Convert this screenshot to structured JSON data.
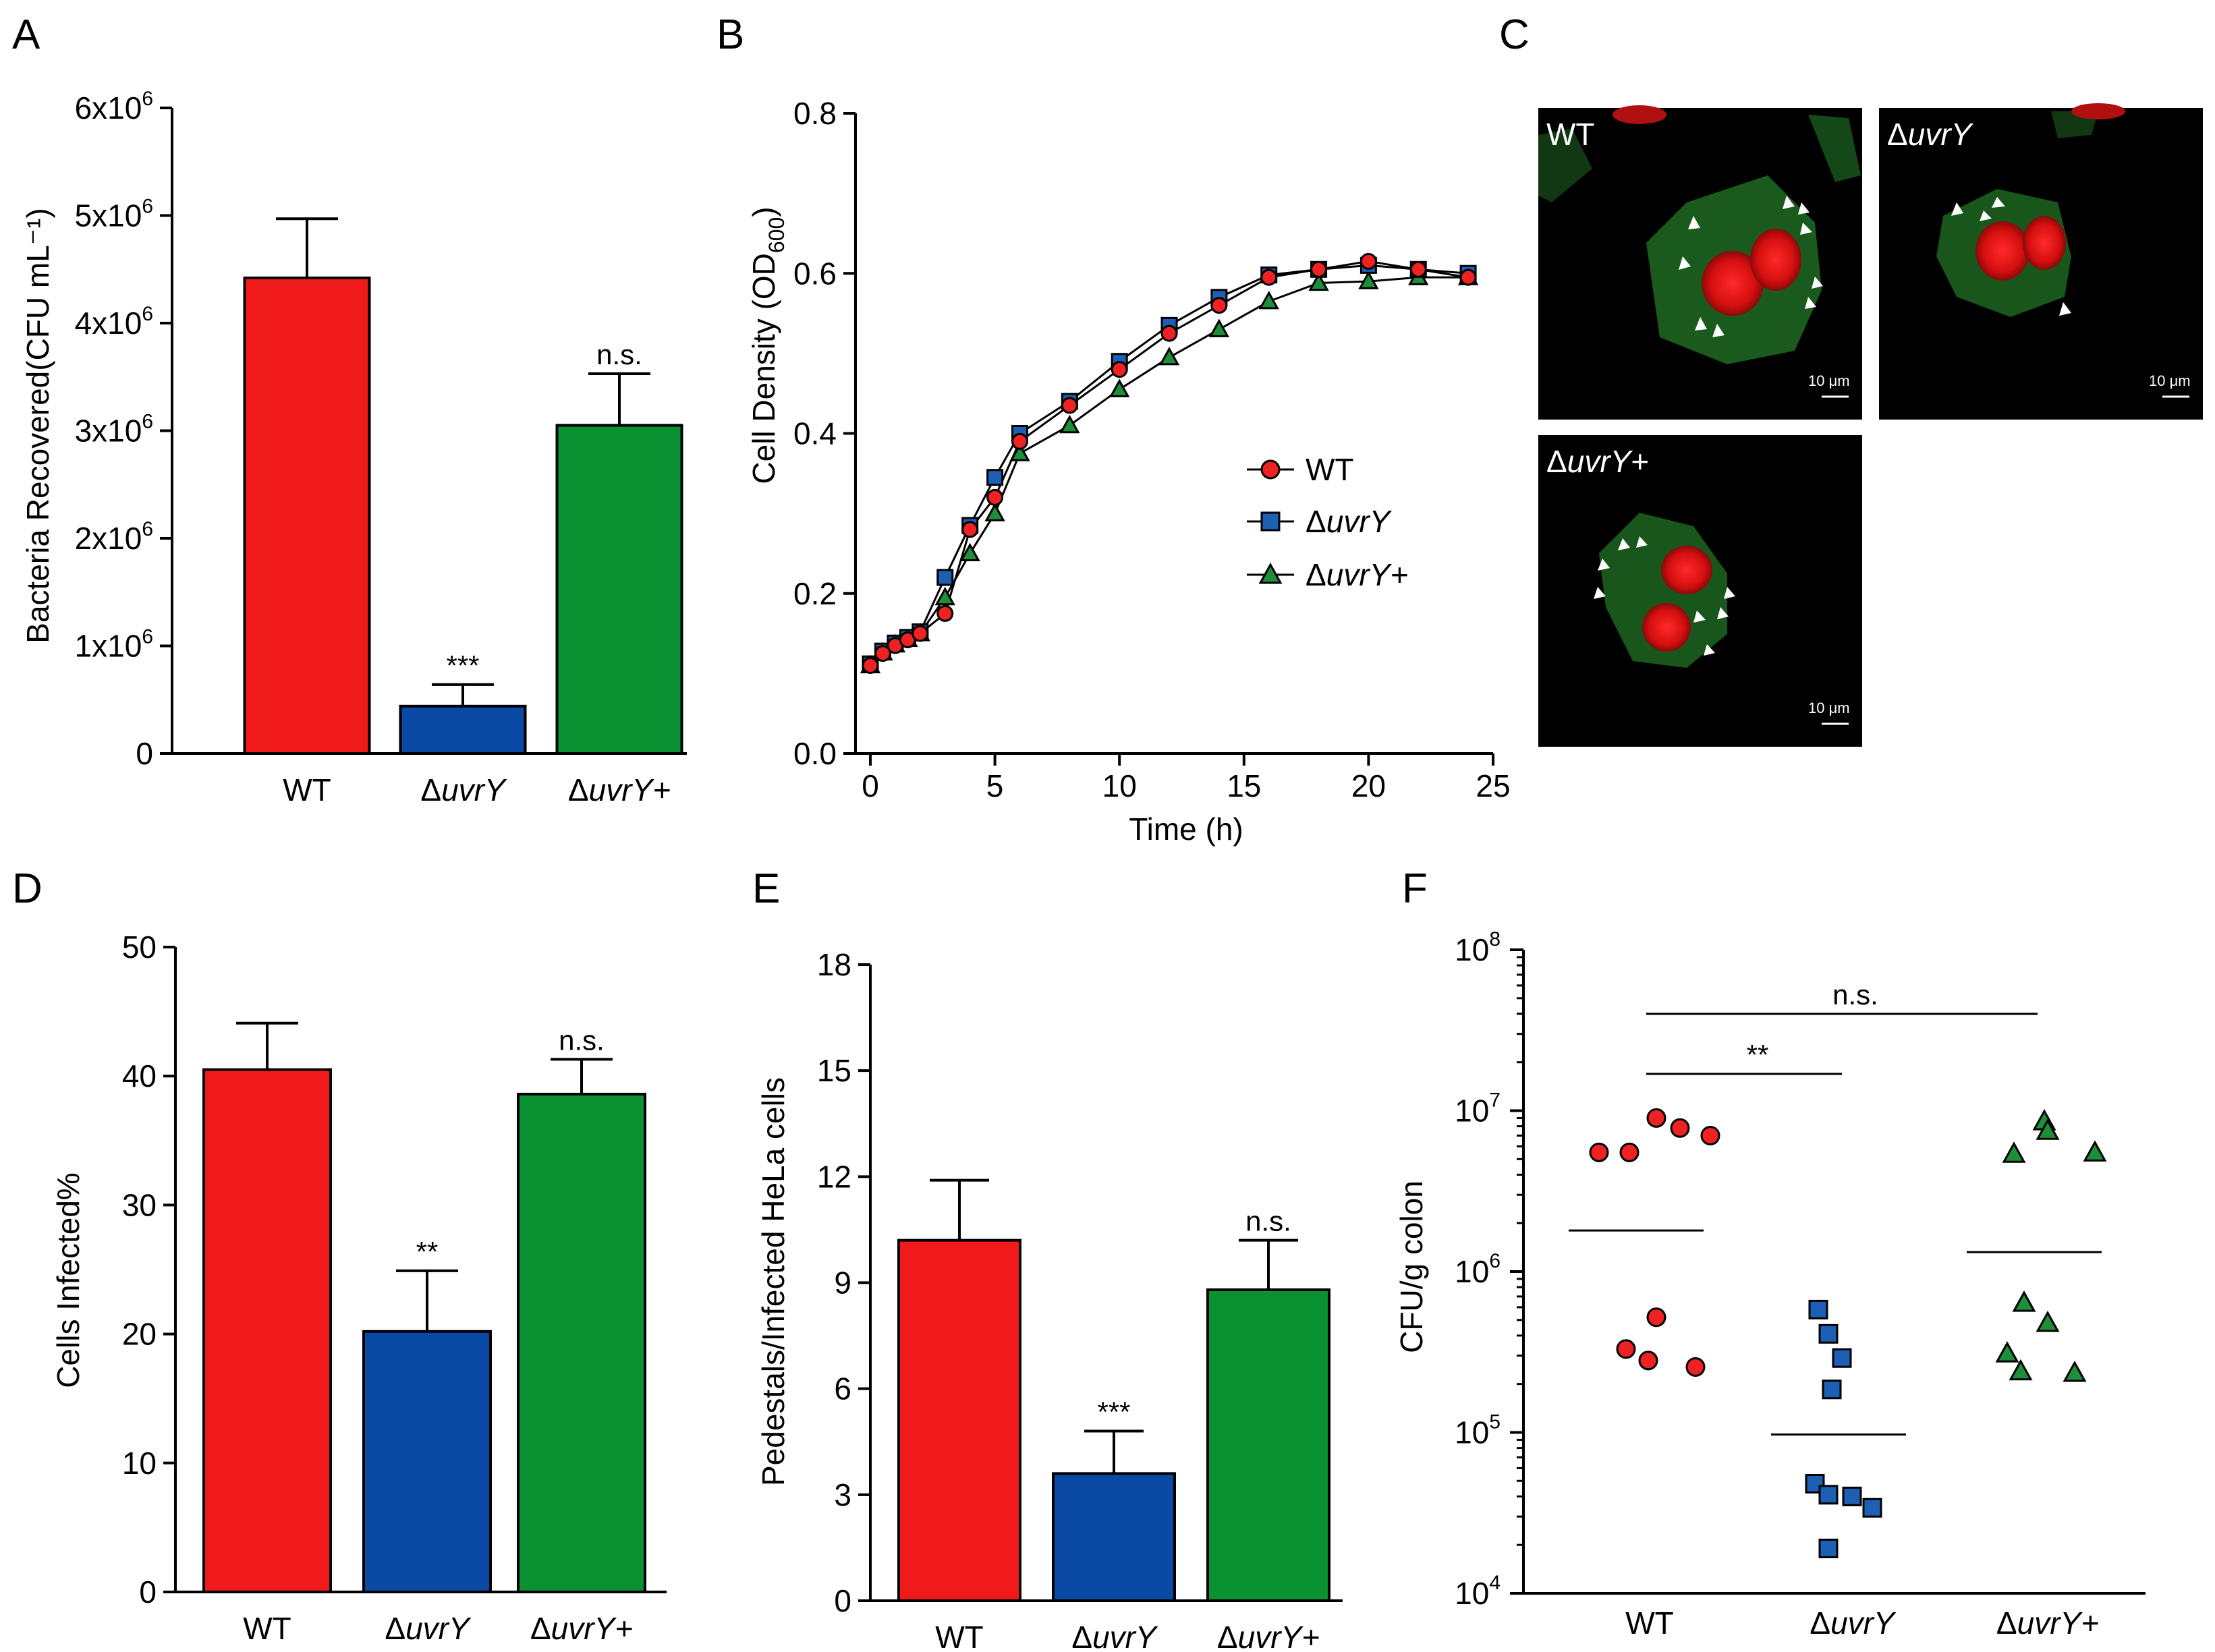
{
  "panel_labels": [
    "A",
    "B",
    "C",
    "D",
    "E",
    "F"
  ],
  "colors": {
    "WT": "#f11a1a",
    "uvrY": "#0a4aa4",
    "uvrYplus": "#0a9232",
    "wt_point": "#ee2222",
    "uvrY_point": "#1c5fb4",
    "uvrYplus_point": "#1d8f3a"
  },
  "chart_data": [
    {
      "id": "A",
      "type": "bar",
      "title": "",
      "xlabel": "",
      "ylabel": "Bacteria Recovered(CFU mL⁻¹)",
      "ylim": [
        0,
        6000000
      ],
      "yticks": [
        {
          "value": 0,
          "label": "0"
        },
        {
          "value": 1000000,
          "label": "1x10⁶"
        },
        {
          "value": 2000000,
          "label": "2x10⁶"
        },
        {
          "value": 3000000,
          "label": "3x10⁶"
        },
        {
          "value": 4000000,
          "label": "4x10⁶"
        },
        {
          "value": 5000000,
          "label": "5x10⁶"
        },
        {
          "value": 6000000,
          "label": "6x10⁶"
        }
      ],
      "categories": [
        {
          "prefix": "",
          "name": "WT",
          "suffix": ""
        },
        {
          "prefix": "Δ",
          "name": "uvrY",
          "suffix": ""
        },
        {
          "prefix": "Δ",
          "name": "uvrY",
          "suffix": "+"
        }
      ],
      "values": [
        4420000,
        440000,
        3050000
      ],
      "errors": [
        550000,
        200000,
        480000
      ],
      "significance": [
        "",
        "***",
        "n.s."
      ]
    },
    {
      "id": "B",
      "type": "line",
      "xlabel": "Time (h)",
      "ylabel_main": "Cell Density (OD",
      "ylabel_sub": "600",
      "ylabel_end": ")",
      "xlim": [
        0,
        25
      ],
      "ylim": [
        0,
        0.8
      ],
      "xticks": [
        0,
        5,
        10,
        15,
        20,
        25
      ],
      "yticks": [
        {
          "value": 0,
          "label": "0.0"
        },
        {
          "value": 0.2,
          "label": "0.2"
        },
        {
          "value": 0.4,
          "label": "0.4"
        },
        {
          "value": 0.6,
          "label": "0.6"
        },
        {
          "value": 0.8,
          "label": "0.8"
        }
      ],
      "x": [
        0,
        0.5,
        1,
        1.5,
        2,
        3,
        4,
        5,
        6,
        8,
        10,
        12,
        14,
        16,
        18,
        20,
        22,
        24
      ],
      "series": [
        {
          "name": "WT",
          "prefix": "",
          "italic": false,
          "marker": "circle",
          "values": [
            0.11,
            0.125,
            0.135,
            0.142,
            0.15,
            0.175,
            0.28,
            0.32,
            0.39,
            0.435,
            0.48,
            0.525,
            0.56,
            0.595,
            0.605,
            0.615,
            0.605,
            0.595
          ]
        },
        {
          "name": "uvrY",
          "prefix": "Δ",
          "italic": true,
          "marker": "square",
          "values": [
            0.112,
            0.128,
            0.138,
            0.145,
            0.152,
            0.22,
            0.285,
            0.345,
            0.4,
            0.44,
            0.49,
            0.535,
            0.57,
            0.598,
            0.605,
            0.61,
            0.605,
            0.6
          ]
        },
        {
          "name": "uvrY+",
          "prefix": "Δ",
          "italic": true,
          "marker": "triangle",
          "values": [
            0.11,
            0.126,
            0.136,
            0.143,
            0.15,
            0.195,
            0.25,
            0.3,
            0.375,
            0.41,
            0.455,
            0.495,
            0.53,
            0.565,
            0.588,
            0.59,
            0.595,
            0.595
          ]
        }
      ]
    },
    {
      "id": "D",
      "type": "bar",
      "xlabel": "",
      "ylabel": "Cells Infected%",
      "ylim": [
        0,
        50
      ],
      "yticks": [
        {
          "value": 0,
          "label": "0"
        },
        {
          "value": 10,
          "label": "10"
        },
        {
          "value": 20,
          "label": "20"
        },
        {
          "value": 30,
          "label": "30"
        },
        {
          "value": 40,
          "label": "40"
        },
        {
          "value": 50,
          "label": "50"
        }
      ],
      "categories": [
        {
          "prefix": "",
          "name": "WT",
          "suffix": ""
        },
        {
          "prefix": "Δ",
          "name": "uvrY",
          "suffix": ""
        },
        {
          "prefix": "Δ",
          "name": "uvrY",
          "suffix": "+"
        }
      ],
      "values": [
        40.5,
        20.2,
        38.6
      ],
      "errors": [
        3.6,
        4.7,
        2.7
      ],
      "significance": [
        "",
        "**",
        "n.s."
      ]
    },
    {
      "id": "E",
      "type": "bar",
      "xlabel": "",
      "ylabel": "Pedestals/Infected HeLa cells",
      "ylim": [
        0,
        18
      ],
      "yticks": [
        {
          "value": 0,
          "label": "0"
        },
        {
          "value": 3,
          "label": "3"
        },
        {
          "value": 6,
          "label": "6"
        },
        {
          "value": 9,
          "label": "9"
        },
        {
          "value": 12,
          "label": "12"
        },
        {
          "value": 15,
          "label": "15"
        },
        {
          "value": 18,
          "label": "18"
        }
      ],
      "categories": [
        {
          "prefix": "",
          "name": "WT",
          "suffix": ""
        },
        {
          "prefix": "Δ",
          "name": "uvrY",
          "suffix": ""
        },
        {
          "prefix": "Δ",
          "name": "uvrY",
          "suffix": "+"
        }
      ],
      "values": [
        10.2,
        3.6,
        8.8
      ],
      "errors": [
        1.7,
        1.2,
        1.4
      ],
      "significance": [
        "",
        "***",
        "n.s."
      ]
    },
    {
      "id": "F",
      "type": "scatter",
      "xlabel": "",
      "ylabel": "CFU/g colon",
      "yscale": "log",
      "ylim": [
        10000,
        100000000
      ],
      "yticks": [
        {
          "value": 10000,
          "base": "10",
          "exp": "4"
        },
        {
          "value": 100000,
          "base": "10",
          "exp": "5"
        },
        {
          "value": 1000000,
          "base": "10",
          "exp": "6"
        },
        {
          "value": 10000000,
          "base": "10",
          "exp": "7"
        },
        {
          "value": 100000000,
          "base": "10",
          "exp": "8"
        }
      ],
      "categories": [
        {
          "prefix": "",
          "name": "WT",
          "suffix": ""
        },
        {
          "prefix": "Δ",
          "name": "uvrY",
          "suffix": ""
        },
        {
          "prefix": "Δ",
          "name": "uvrY",
          "suffix": "+"
        }
      ],
      "groups": [
        {
          "marker": "circle",
          "mean": 1800000,
          "values": [
            5500000,
            5500000,
            9000000,
            7800000,
            7000000,
            520000,
            330000,
            280000,
            255000
          ]
        },
        {
          "marker": "square",
          "mean": 97000,
          "values": [
            580000,
            410000,
            290000,
            185000,
            48000,
            41000,
            40000,
            34000,
            19000
          ]
        },
        {
          "marker": "triangle",
          "mean": 1320000,
          "values": [
            5400000,
            8600000,
            7500000,
            5500000,
            640000,
            480000,
            310000,
            240000,
            235000
          ]
        }
      ],
      "comparisons": [
        {
          "from": 0,
          "to": 1,
          "label": "**"
        },
        {
          "from": 0,
          "to": 2,
          "label": "n.s."
        }
      ]
    }
  ],
  "micrographs": [
    {
      "label_prefix": "",
      "label_name": "WT",
      "label_suffix": "",
      "scale_text": "10 μm"
    },
    {
      "label_prefix": "Δ",
      "label_name": "uvrY",
      "label_suffix": "",
      "scale_text": "10 μm"
    },
    {
      "label_prefix": "Δ",
      "label_name": "uvrY",
      "label_suffix": "+",
      "scale_text": "10 μm"
    }
  ]
}
